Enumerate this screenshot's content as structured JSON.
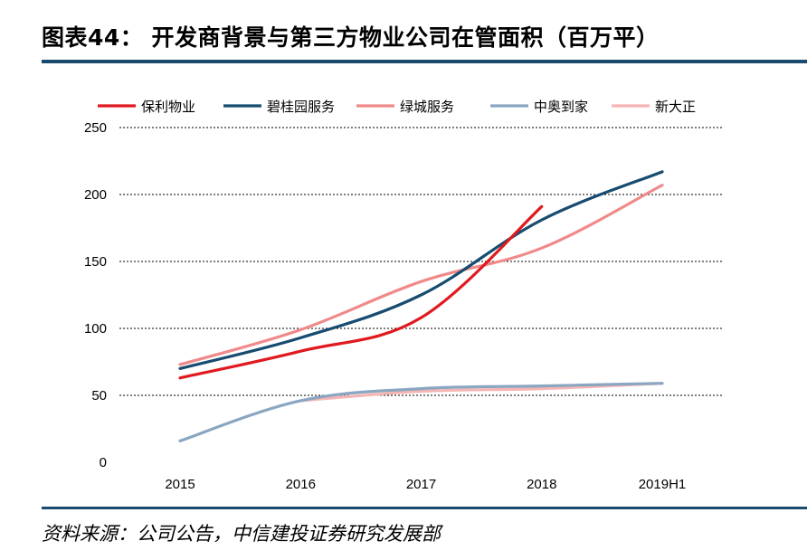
{
  "header": {
    "title": "图表44：  开发商背景与第三方物业公司在管面积（百万平）"
  },
  "footer": {
    "source": "资料来源：公司公告，中信建投证券研究发展部"
  },
  "chart_data": {
    "type": "line",
    "title": "图表44：  开发商背景与第三方物业公司在管面积（百万平）",
    "categories": [
      "2015",
      "2016",
      "2017",
      "2018",
      "2019H1"
    ],
    "ylim": [
      0,
      250
    ],
    "yticks": [
      0,
      50,
      100,
      150,
      200,
      250
    ],
    "grid": true,
    "grid_style": "dashed",
    "legend_position": "top",
    "series": [
      {
        "name": "保利物业",
        "color": "#e0191e",
        "values": [
          63,
          83,
          108,
          191,
          null
        ]
      },
      {
        "name": "碧桂园服务",
        "color": "#174b70",
        "values": [
          70,
          93,
          125,
          181,
          217
        ]
      },
      {
        "name": "绿城服务",
        "color": "#f08a8a",
        "values": [
          73,
          99,
          135,
          160,
          207
        ]
      },
      {
        "name": "中奥到家",
        "color": "#8aa6c1",
        "values": [
          16,
          46,
          55,
          57,
          59
        ]
      },
      {
        "name": "新大正",
        "color": "#f6b5b5",
        "values": [
          null,
          46,
          53,
          55,
          59
        ]
      }
    ]
  }
}
